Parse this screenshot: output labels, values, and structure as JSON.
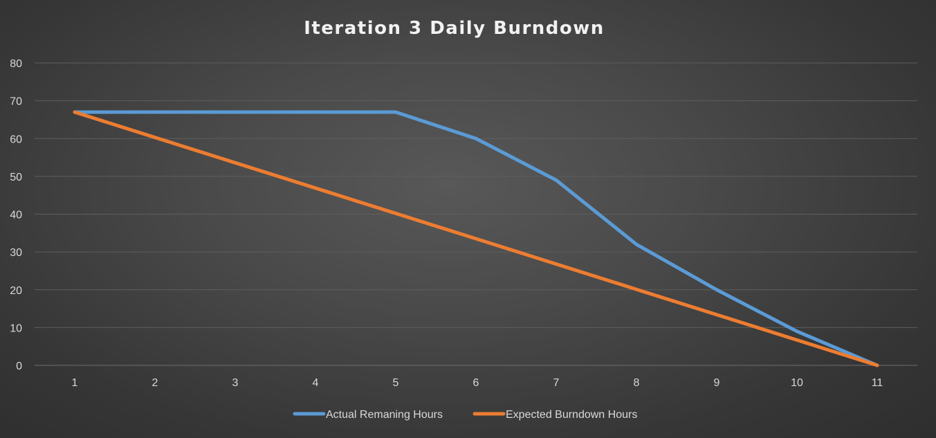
{
  "chart_data": {
    "type": "line",
    "title": "Iteration 3 Daily Burndown",
    "xlabel": "",
    "ylabel": "",
    "categories": [
      "1",
      "2",
      "3",
      "4",
      "5",
      "6",
      "7",
      "8",
      "9",
      "10",
      "11"
    ],
    "ylim": [
      0,
      80
    ],
    "yticks": [
      0,
      10,
      20,
      30,
      40,
      50,
      60,
      70,
      80
    ],
    "grid": true,
    "legend_position": "bottom",
    "series": [
      {
        "name": "Actual Remaning Hours",
        "color": "#5b9bd5",
        "values": [
          67,
          67,
          67,
          67,
          67,
          60,
          49,
          32,
          20,
          9,
          0
        ]
      },
      {
        "name": "Expected Burndown Hours",
        "color": "#ed7d31",
        "values": [
          67,
          60.3,
          53.6,
          46.9,
          40.2,
          33.5,
          26.8,
          20.1,
          13.4,
          6.7,
          0
        ]
      }
    ]
  }
}
